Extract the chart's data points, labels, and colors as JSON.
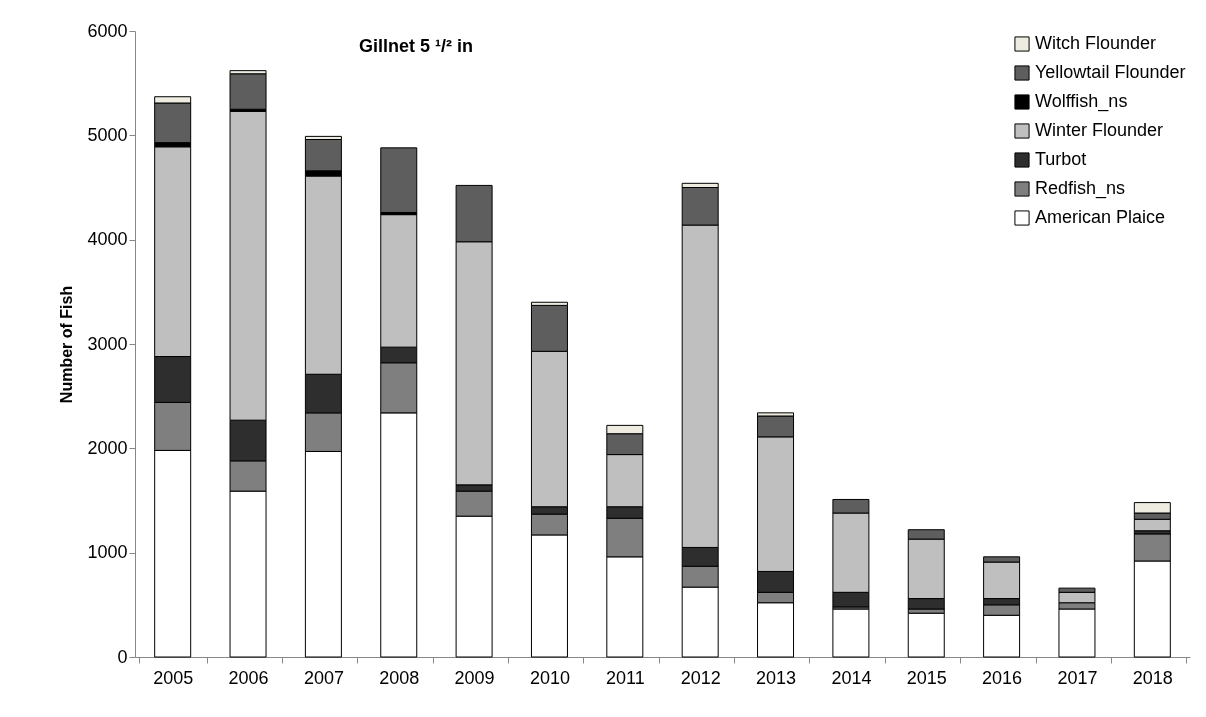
{
  "chart_data": {
    "type": "bar",
    "stacked": true,
    "title": "Gillnet 5 ¹/² in",
    "ylabel": "Number of Fish",
    "categories": [
      "2005",
      "2006",
      "2007",
      "2008",
      "2009",
      "2010",
      "2011",
      "2012",
      "2013",
      "2014",
      "2015",
      "2016",
      "2017",
      "2018"
    ],
    "ylim": [
      0,
      6000
    ],
    "yticks": [
      0,
      1000,
      2000,
      3000,
      4000,
      5000,
      6000
    ],
    "grid": false,
    "legend": "top right",
    "series": [
      {
        "name": "American Plaice",
        "color": "#ffffff",
        "values": [
          1980,
          1590,
          1970,
          2340,
          1350,
          1170,
          960,
          670,
          520,
          460,
          420,
          400,
          460,
          920
        ]
      },
      {
        "name": "Redfish_ns",
        "color": "#7f7f7f",
        "values": [
          460,
          290,
          370,
          480,
          240,
          200,
          370,
          200,
          100,
          20,
          40,
          100,
          60,
          260
        ]
      },
      {
        "name": "Turbot",
        "color": "#2e2e2e",
        "values": [
          440,
          390,
          370,
          150,
          60,
          70,
          110,
          180,
          200,
          140,
          100,
          60,
          null,
          30
        ]
      },
      {
        "name": "Winter Flounder",
        "color": "#bfbfbf",
        "values": [
          2010,
          2960,
          1900,
          1270,
          2330,
          1490,
          500,
          3090,
          1290,
          760,
          570,
          350,
          100,
          110
        ]
      },
      {
        "name": "Wolffish_ns",
        "color": "#000000",
        "values": [
          40,
          20,
          50,
          20,
          null,
          null,
          null,
          null,
          null,
          null,
          null,
          null,
          null,
          null
        ]
      },
      {
        "name": "Yellowtail Flounder",
        "color": "#5e5e5e",
        "values": [
          380,
          340,
          300,
          620,
          540,
          440,
          200,
          360,
          200,
          130,
          90,
          50,
          40,
          60
        ]
      },
      {
        "name": "Witch Flounder",
        "color": "#eeece1",
        "values": [
          60,
          30,
          30,
          null,
          null,
          30,
          80,
          40,
          30,
          null,
          null,
          null,
          null,
          100
        ]
      }
    ]
  }
}
